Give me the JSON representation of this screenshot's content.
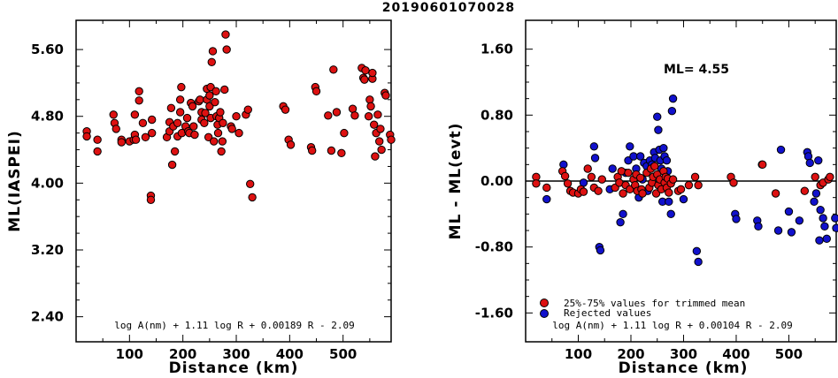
{
  "title": "20190601070028",
  "colors": {
    "trimmed": "#dd1111",
    "rejected": "#1111cc"
  },
  "chart_data": [
    {
      "type": "scatter",
      "xlabel": "Distance (km)",
      "ylabel": "ML(IASPEI)",
      "xlim": [
        0,
        590
      ],
      "ylim": [
        2.1,
        5.95
      ],
      "xticks": [
        100,
        200,
        300,
        400,
        500
      ],
      "yticks": [
        2.4,
        3.2,
        4.0,
        4.8,
        5.6
      ],
      "ytick_labels": [
        "2.40",
        "3.20",
        "4.00",
        "4.80",
        "5.60"
      ],
      "formula": "log A(nm) + 1.11 log R + 0.00189 R - 2.09",
      "points": [
        [
          20,
          4.62
        ],
        [
          20,
          4.56
        ],
        [
          40,
          4.52
        ],
        [
          40,
          4.38
        ],
        [
          70,
          4.82
        ],
        [
          72,
          4.72
        ],
        [
          75,
          4.65
        ],
        [
          85,
          4.52
        ],
        [
          85,
          4.49
        ],
        [
          100,
          4.5
        ],
        [
          108,
          4.52
        ],
        [
          110,
          4.58
        ],
        [
          110,
          4.82
        ],
        [
          112,
          4.52
        ],
        [
          118,
          4.99
        ],
        [
          118,
          5.1
        ],
        [
          125,
          4.72
        ],
        [
          130,
          4.55
        ],
        [
          140,
          3.85
        ],
        [
          140,
          3.8
        ],
        [
          142,
          4.6
        ],
        [
          142,
          4.76
        ],
        [
          170,
          4.55
        ],
        [
          175,
          4.62
        ],
        [
          175,
          4.73
        ],
        [
          178,
          4.9
        ],
        [
          180,
          4.22
        ],
        [
          182,
          4.68
        ],
        [
          185,
          4.38
        ],
        [
          190,
          4.56
        ],
        [
          190,
          4.72
        ],
        [
          195,
          4.85
        ],
        [
          195,
          5.0
        ],
        [
          197,
          5.15
        ],
        [
          198,
          4.6
        ],
        [
          205,
          4.68
        ],
        [
          208,
          4.78
        ],
        [
          210,
          4.62
        ],
        [
          212,
          4.6
        ],
        [
          215,
          4.96
        ],
        [
          218,
          4.92
        ],
        [
          220,
          4.68
        ],
        [
          222,
          4.58
        ],
        [
          230,
          4.98
        ],
        [
          232,
          5.0
        ],
        [
          235,
          4.85
        ],
        [
          235,
          4.76
        ],
        [
          240,
          4.72
        ],
        [
          242,
          4.84
        ],
        [
          245,
          5.0
        ],
        [
          245,
          5.13
        ],
        [
          248,
          4.55
        ],
        [
          250,
          4.92
        ],
        [
          250,
          5.05
        ],
        [
          252,
          5.15
        ],
        [
          252,
          4.78
        ],
        [
          254,
          5.45
        ],
        [
          256,
          5.58
        ],
        [
          258,
          4.5
        ],
        [
          260,
          4.97
        ],
        [
          262,
          5.1
        ],
        [
          263,
          4.8
        ],
        [
          265,
          4.7
        ],
        [
          266,
          4.6
        ],
        [
          268,
          4.78
        ],
        [
          270,
          4.85
        ],
        [
          272,
          4.38
        ],
        [
          274,
          4.5
        ],
        [
          275,
          4.72
        ],
        [
          278,
          5.12
        ],
        [
          280,
          5.78
        ],
        [
          282,
          5.6
        ],
        [
          290,
          4.68
        ],
        [
          292,
          4.65
        ],
        [
          300,
          4.8
        ],
        [
          305,
          4.6
        ],
        [
          318,
          4.82
        ],
        [
          322,
          4.88
        ],
        [
          326,
          3.99
        ],
        [
          330,
          3.83
        ],
        [
          388,
          4.92
        ],
        [
          392,
          4.88
        ],
        [
          398,
          4.52
        ],
        [
          402,
          4.46
        ],
        [
          440,
          4.43
        ],
        [
          442,
          4.39
        ],
        [
          448,
          5.15
        ],
        [
          450,
          5.1
        ],
        [
          472,
          4.81
        ],
        [
          478,
          4.39
        ],
        [
          482,
          5.36
        ],
        [
          488,
          4.85
        ],
        [
          497,
          4.36
        ],
        [
          502,
          4.6
        ],
        [
          518,
          4.89
        ],
        [
          522,
          4.81
        ],
        [
          535,
          5.38
        ],
        [
          538,
          5.26
        ],
        [
          540,
          5.24
        ],
        [
          542,
          5.35
        ],
        [
          548,
          4.8
        ],
        [
          550,
          5.0
        ],
        [
          552,
          4.92
        ],
        [
          555,
          5.25
        ],
        [
          555,
          5.32
        ],
        [
          558,
          4.7
        ],
        [
          560,
          4.32
        ],
        [
          562,
          4.6
        ],
        [
          565,
          4.82
        ],
        [
          568,
          4.5
        ],
        [
          570,
          4.65
        ],
        [
          572,
          4.4
        ],
        [
          578,
          5.08
        ],
        [
          580,
          5.05
        ],
        [
          588,
          4.58
        ],
        [
          590,
          4.52
        ]
      ]
    },
    {
      "type": "scatter",
      "xlabel": "Distance (km)",
      "ylabel": "ML - ML(evt)",
      "ml_label": "ML= 4.55",
      "xlim": [
        0,
        590
      ],
      "ylim": [
        -1.95,
        1.95
      ],
      "xticks": [
        100,
        200,
        300,
        400,
        500
      ],
      "yticks": [
        -1.6,
        -0.8,
        0.0,
        0.8,
        1.6
      ],
      "ytick_labels": [
        "-1.60",
        "-0.80",
        "0.00",
        "0.80",
        "1.60"
      ],
      "formula": "log A(nm) + 1.11 log R + 0.00104 R - 2.09",
      "legend": {
        "trimmed": "25%-75% values for trimmed mean",
        "rejected": "Rejected values"
      },
      "trimmed": [
        [
          20,
          0.05
        ],
        [
          20,
          -0.03
        ],
        [
          40,
          -0.08
        ],
        [
          70,
          0.12
        ],
        [
          75,
          0.06
        ],
        [
          80,
          -0.03
        ],
        [
          85,
          -0.12
        ],
        [
          90,
          -0.14
        ],
        [
          100,
          -0.15
        ],
        [
          105,
          -0.1
        ],
        [
          110,
          -0.13
        ],
        [
          118,
          0.15
        ],
        [
          125,
          0.05
        ],
        [
          130,
          -0.08
        ],
        [
          138,
          -0.12
        ],
        [
          145,
          0.02
        ],
        [
          170,
          -0.08
        ],
        [
          175,
          0.05
        ],
        [
          178,
          -0.02
        ],
        [
          182,
          0.12
        ],
        [
          185,
          -0.15
        ],
        [
          190,
          -0.05
        ],
        [
          195,
          0.1
        ],
        [
          198,
          -0.1
        ],
        [
          205,
          0.02
        ],
        [
          208,
          -0.05
        ],
        [
          210,
          0.08
        ],
        [
          212,
          -0.12
        ],
        [
          218,
          0.04
        ],
        [
          220,
          -0.1
        ],
        [
          222,
          -0.15
        ],
        [
          230,
          0.1
        ],
        [
          235,
          -0.08
        ],
        [
          238,
          0.15
        ],
        [
          240,
          -0.02
        ],
        [
          242,
          0.05
        ],
        [
          245,
          0.18
        ],
        [
          248,
          -0.15
        ],
        [
          250,
          0.08
        ],
        [
          252,
          -0.05
        ],
        [
          255,
          0.02
        ],
        [
          258,
          -0.1
        ],
        [
          262,
          0.12
        ],
        [
          264,
          -0.02
        ],
        [
          266,
          0.05
        ],
        [
          268,
          -0.08
        ],
        [
          270,
          0.03
        ],
        [
          272,
          -0.14
        ],
        [
          276,
          -0.03
        ],
        [
          280,
          0.02
        ],
        [
          290,
          -0.12
        ],
        [
          295,
          -0.1
        ],
        [
          310,
          -0.05
        ],
        [
          322,
          0.05
        ],
        [
          328,
          -0.05
        ],
        [
          390,
          0.05
        ],
        [
          395,
          -0.02
        ],
        [
          450,
          0.2
        ],
        [
          475,
          -0.15
        ],
        [
          530,
          -0.12
        ],
        [
          550,
          0.05
        ],
        [
          560,
          -0.05
        ],
        [
          565,
          -0.02
        ],
        [
          575,
          0.02
        ],
        [
          578,
          0.05
        ]
      ],
      "rejected": [
        [
          40,
          -0.22
        ],
        [
          72,
          0.2
        ],
        [
          110,
          -0.02
        ],
        [
          130,
          0.42
        ],
        [
          132,
          0.28
        ],
        [
          140,
          -0.8
        ],
        [
          142,
          -0.84
        ],
        [
          160,
          -0.1
        ],
        [
          165,
          0.15
        ],
        [
          180,
          -0.5
        ],
        [
          185,
          -0.4
        ],
        [
          190,
          0.1
        ],
        [
          195,
          0.25
        ],
        [
          198,
          0.42
        ],
        [
          205,
          0.3
        ],
        [
          210,
          0.15
        ],
        [
          215,
          -0.2
        ],
        [
          218,
          0.3
        ],
        [
          222,
          0.02
        ],
        [
          225,
          0.22
        ],
        [
          230,
          0.18
        ],
        [
          232,
          -0.12
        ],
        [
          236,
          0.25
        ],
        [
          240,
          0.2
        ],
        [
          244,
          0.35
        ],
        [
          246,
          0.28
        ],
        [
          250,
          0.78
        ],
        [
          252,
          0.62
        ],
        [
          254,
          0.38
        ],
        [
          256,
          0.25
        ],
        [
          258,
          0.15
        ],
        [
          260,
          -0.25
        ],
        [
          262,
          0.4
        ],
        [
          264,
          0.3
        ],
        [
          268,
          0.25
        ],
        [
          270,
          0.12
        ],
        [
          272,
          -0.25
        ],
        [
          276,
          -0.4
        ],
        [
          278,
          0.85
        ],
        [
          280,
          1.0
        ],
        [
          300,
          -0.22
        ],
        [
          325,
          -0.85
        ],
        [
          328,
          -0.98
        ],
        [
          398,
          -0.4
        ],
        [
          400,
          -0.46
        ],
        [
          440,
          -0.48
        ],
        [
          442,
          -0.55
        ],
        [
          449,
          0.2
        ],
        [
          480,
          -0.6
        ],
        [
          485,
          0.38
        ],
        [
          500,
          -0.37
        ],
        [
          505,
          -0.62
        ],
        [
          520,
          -0.48
        ],
        [
          535,
          0.35
        ],
        [
          537,
          0.3
        ],
        [
          540,
          0.22
        ],
        [
          548,
          -0.25
        ],
        [
          552,
          -0.15
        ],
        [
          556,
          0.25
        ],
        [
          558,
          -0.72
        ],
        [
          560,
          -0.35
        ],
        [
          565,
          -0.45
        ],
        [
          568,
          -0.55
        ],
        [
          572,
          -0.7
        ],
        [
          588,
          -0.45
        ],
        [
          590,
          -0.57
        ]
      ]
    }
  ]
}
